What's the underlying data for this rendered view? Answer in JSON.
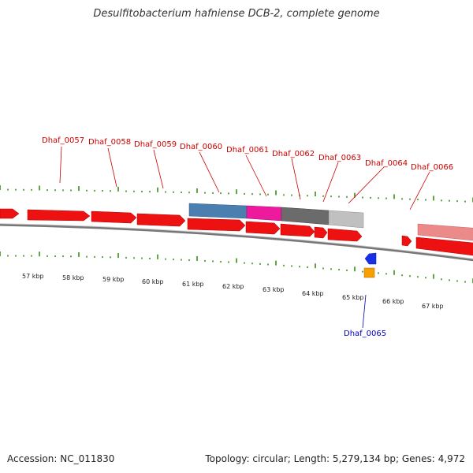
{
  "title": "Desulfitobacterium hafniense DCB-2, complete genome",
  "footer": {
    "accession": "Accession: NC_011830",
    "topology": "Topology: circular; Length: 5,279,134 bp; Genes: 4,972"
  },
  "colors": {
    "cds_red": "#ee1111",
    "cds_highlight_blue": "#4a7fb0",
    "cds_highlight_magenta": "#ee1a9e",
    "cds_highlight_dark_gray": "#6b6b6b",
    "cds_highlight_light_gray": "#c0c0c0",
    "cds_pale_red": "#ec8a8a",
    "small_blue": "#1530e6",
    "small_orange": "#f5a000",
    "tick_green": "#2a8a00",
    "label_red": "#cc0000",
    "label_blue": "#0000b4"
  },
  "gene_labels": [
    {
      "name": "Dhaf_0057"
    },
    {
      "name": "Dhaf_0058"
    },
    {
      "name": "Dhaf_0059"
    },
    {
      "name": "Dhaf_0060"
    },
    {
      "name": "Dhaf_0061"
    },
    {
      "name": "Dhaf_0062"
    },
    {
      "name": "Dhaf_0063"
    },
    {
      "name": "Dhaf_0064"
    },
    {
      "name": "Dhaf_0066"
    },
    {
      "name": "Dhaf_0065",
      "color": "blue"
    }
  ],
  "kbp_labels": [
    "57 kbp",
    "58 kbp",
    "59 kbp",
    "60 kbp",
    "61 kbp",
    "62 kbp",
    "63 kbp",
    "64 kbp",
    "65 kbp",
    "66 kbp",
    "67 kbp"
  ]
}
